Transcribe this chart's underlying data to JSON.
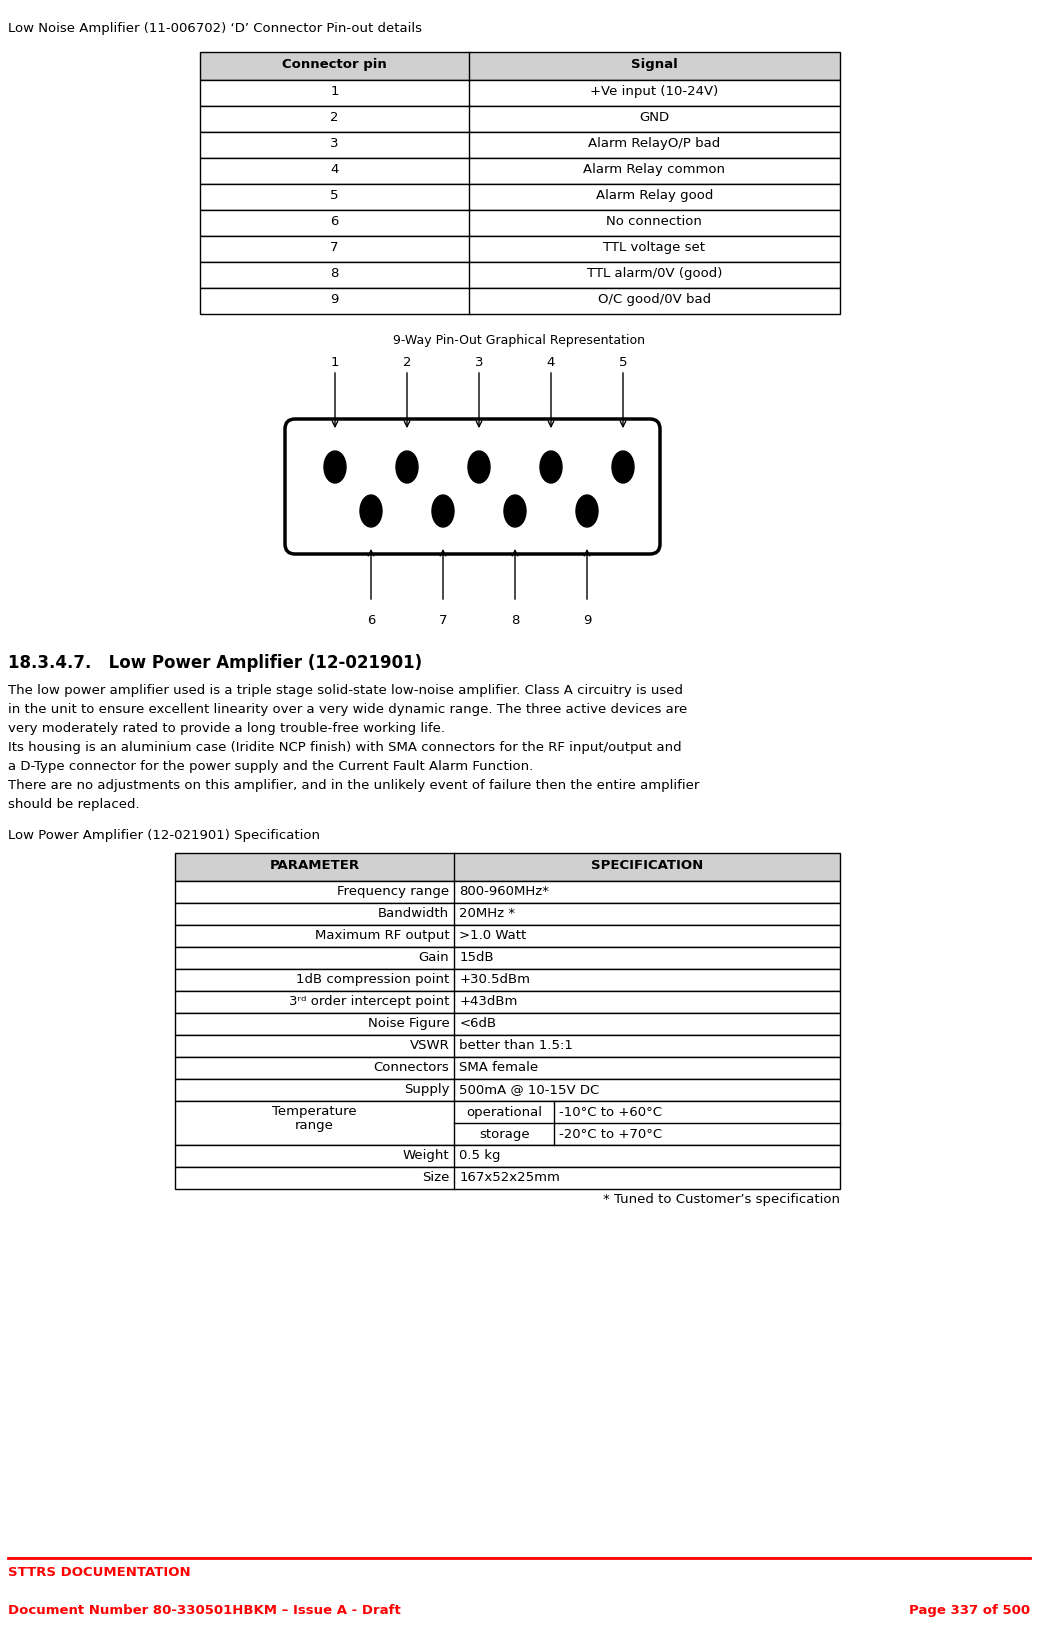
{
  "title_top": "Low Noise Amplifier (11-006702) ‘D’ Connector Pin-out details",
  "table1_headers": [
    "Connector pin",
    "Signal"
  ],
  "table1_rows": [
    [
      "1",
      "+Ve input (10-24V)"
    ],
    [
      "2",
      "GND"
    ],
    [
      "3",
      "Alarm RelayO/P bad"
    ],
    [
      "4",
      "Alarm Relay common"
    ],
    [
      "5",
      "Alarm Relay good"
    ],
    [
      "6",
      "No connection"
    ],
    [
      "7",
      "TTL voltage set"
    ],
    [
      "8",
      "TTL alarm/0V (good)"
    ],
    [
      "9",
      "O/C good/0V bad"
    ]
  ],
  "diagram_title": "9-Way Pin-Out Graphical Representation",
  "section_header": "18.3.4.7.   Low Power Amplifier (12-021901)",
  "body_paragraphs": [
    "The low power amplifier used is a triple stage solid-state low-noise amplifier. Class A circuitry is used",
    "in the unit to ensure excellent linearity over a very wide dynamic range. The three active devices are",
    "very moderately rated to provide a long trouble-free working life.",
    "Its housing is an aluminium case (Iridite NCP finish) with SMA connectors for the RF input/output and",
    "a D-Type connector for the power supply and the Current Fault Alarm Function.",
    "There are no adjustments on this amplifier, and in the unlikely event of failure then the entire amplifier",
    "should be replaced."
  ],
  "spec_label": "Low Power Amplifier (12-021901) Specification",
  "table2_col1_header": "PARAMETER",
  "table2_col2_header": "SPECIFICATION",
  "footnote": "* Tuned to Customer’s specification",
  "footer_line1": "STTRS DOCUMENTATION",
  "footer_line2": "Document Number 80-330501HBKM – Issue A - Draft",
  "footer_line3": "Page 337 of 500",
  "bg_color": "#ffffff",
  "header_bg": "#d0d0d0",
  "text_color": "#000000",
  "red_color": "#ff0000"
}
